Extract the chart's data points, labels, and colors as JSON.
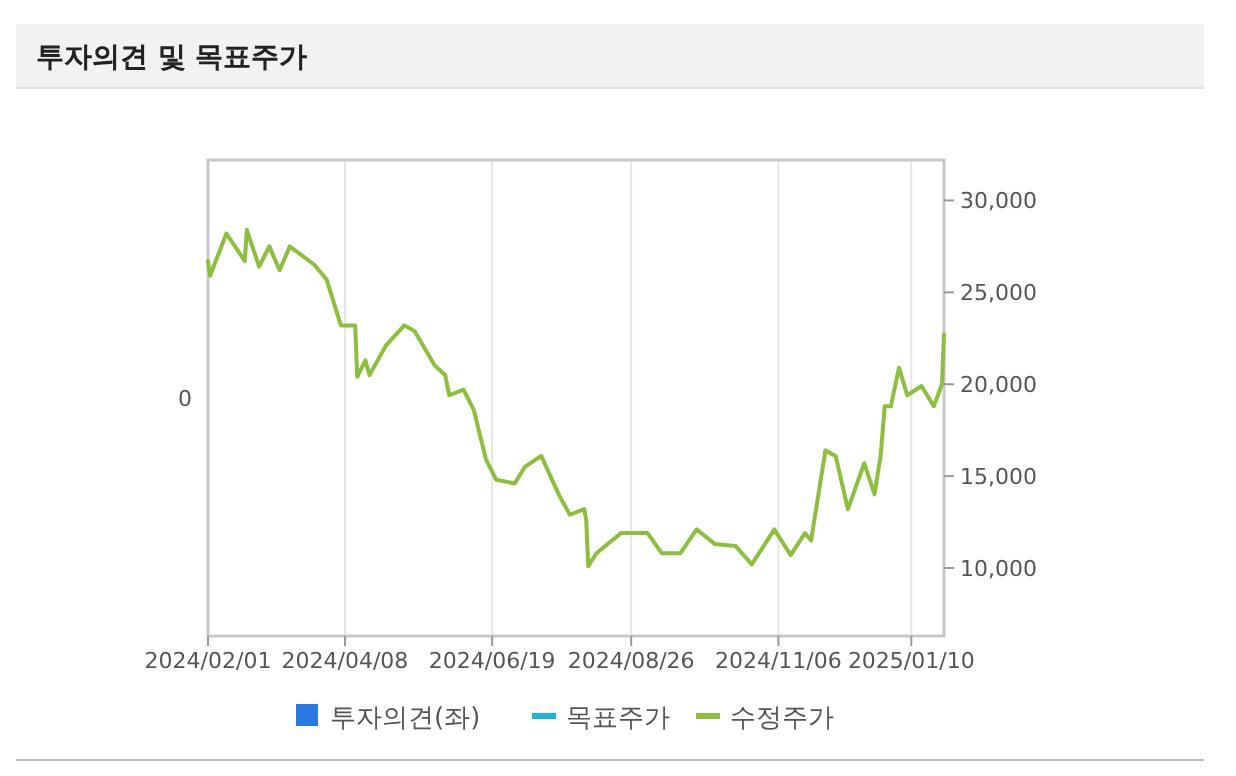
{
  "chart_data": {
    "type": "line",
    "title": "투자의견 및 목표주가",
    "xlim": [
      "2024-02-01",
      "2025-01-26"
    ],
    "xticks": [
      {
        "value": "2024-02-01",
        "label": "2024/02/01"
      },
      {
        "value": "2024-04-08",
        "label": "2024/04/08"
      },
      {
        "value": "2024-06-19",
        "label": "2024/06/19"
      },
      {
        "value": "2024-08-26",
        "label": "2024/08/26"
      },
      {
        "value": "2024-11-06",
        "label": "2024/11/06"
      },
      {
        "value": "2025-01-10",
        "label": "2025/01/10"
      }
    ],
    "annotations": [
      "0"
    ],
    "y2lim": [
      6300,
      32200
    ],
    "y2ticks": [
      {
        "value": 10000,
        "label": "10,000"
      },
      {
        "value": 15000,
        "label": "15,000"
      },
      {
        "value": 20000,
        "label": "20,000"
      },
      {
        "value": 25000,
        "label": "25,000"
      },
      {
        "value": 30000,
        "label": "30,000"
      }
    ],
    "grid": "x",
    "legend": "bottom",
    "line_style": "solid",
    "marker": "none",
    "series": [
      {
        "name": "투자의견(좌)",
        "type": "bar",
        "color": "#2a7ae2"
      },
      {
        "name": "목표주가",
        "axis": "y2",
        "color": "#1fb5d0"
      },
      {
        "name": "수정주가",
        "axis": "y2",
        "color": "#8cbf3f",
        "x": [
          "2024-02-01",
          "2024-02-02",
          "2024-02-10",
          "2024-02-19",
          "2024-02-20",
          "2024-02-26",
          "2024-03-02",
          "2024-03-07",
          "2024-03-12",
          "2024-03-24",
          "2024-03-30",
          "2024-04-06",
          "2024-04-13",
          "2024-04-14",
          "2024-04-18",
          "2024-04-20",
          "2024-04-28",
          "2024-05-07",
          "2024-05-12",
          "2024-05-22",
          "2024-05-27",
          "2024-05-29",
          "2024-06-05",
          "2024-06-10",
          "2024-06-16",
          "2024-06-21",
          "2024-06-30",
          "2024-07-05",
          "2024-07-13",
          "2024-07-22",
          "2024-07-27",
          "2024-08-03",
          "2024-08-04",
          "2024-08-05",
          "2024-08-09",
          "2024-08-21",
          "2024-09-03",
          "2024-09-10",
          "2024-09-19",
          "2024-09-27",
          "2024-10-06",
          "2024-10-16",
          "2024-10-24",
          "2024-11-04",
          "2024-11-12",
          "2024-11-19",
          "2024-11-22",
          "2024-11-29",
          "2024-12-04",
          "2024-12-10",
          "2024-12-18",
          "2024-12-23",
          "2024-12-26",
          "2024-12-28",
          "2024-12-31",
          "2025-01-04",
          "2025-01-08",
          "2025-01-15",
          "2025-01-21",
          "2025-01-25",
          "2025-01-26"
        ],
        "values": [
          26700,
          25900,
          28200,
          26700,
          28400,
          26400,
          27500,
          26200,
          27500,
          26500,
          25700,
          23200,
          23200,
          20400,
          21300,
          20500,
          22100,
          23200,
          22900,
          21000,
          20500,
          19400,
          19700,
          18600,
          15900,
          14800,
          14600,
          15500,
          16100,
          13900,
          12900,
          13200,
          12600,
          10100,
          10800,
          11900,
          11900,
          10800,
          10800,
          12100,
          11300,
          11200,
          10200,
          12100,
          10700,
          11900,
          11500,
          16400,
          16100,
          13200,
          15700,
          14000,
          16100,
          18800,
          18800,
          20900,
          19400,
          19900,
          18800,
          20000,
          22700
        ]
      }
    ]
  }
}
